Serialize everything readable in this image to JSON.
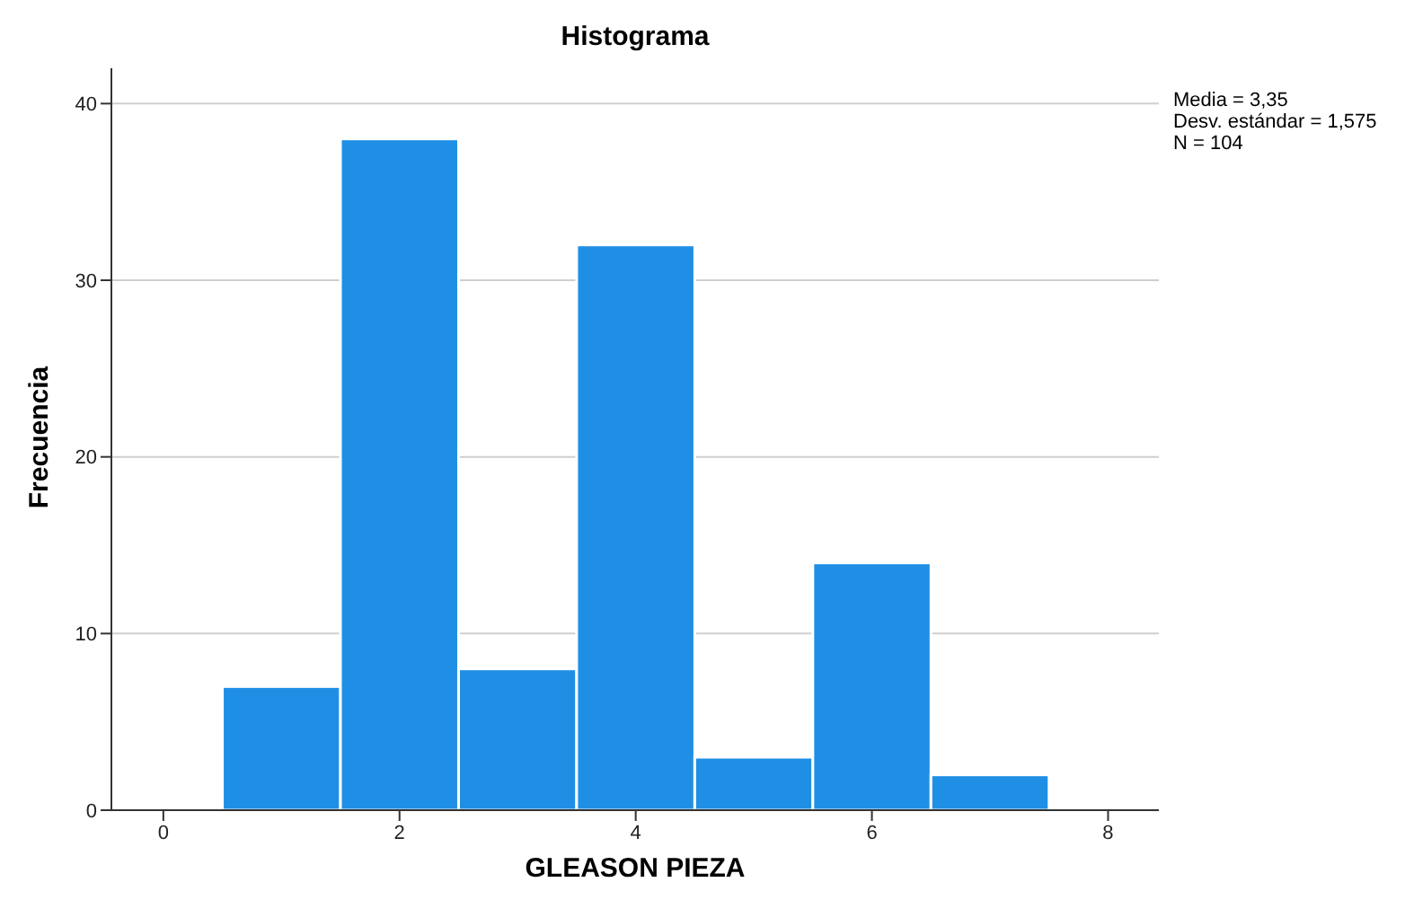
{
  "chart_data": {
    "type": "histogram",
    "title": "Histograma",
    "xlabel": "GLEASON PIEZA",
    "ylabel": "Frecuencia",
    "bins": [
      0.5,
      1.5,
      2.5,
      3.5,
      4.5,
      5.5,
      6.5,
      7.5
    ],
    "values": [
      7,
      38,
      8,
      32,
      3,
      14,
      2
    ],
    "color": "#1f8fe5",
    "xlim": [
      -0.44,
      8.43
    ],
    "xticks": [
      0,
      2,
      4,
      6,
      8
    ],
    "ylim": [
      0,
      42
    ],
    "yticks": [
      0,
      10,
      20,
      30,
      40
    ],
    "grid": "y",
    "annotations": [
      "Media = 3,35",
      "Desv. estándar = 1,575",
      "N = 104"
    ]
  }
}
